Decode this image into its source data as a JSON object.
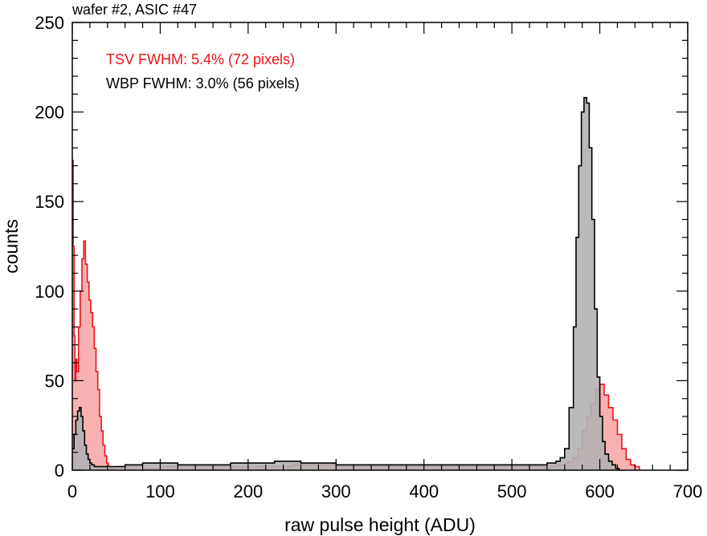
{
  "chart_data": {
    "type": "histogram",
    "title": "wafer #2, ASIC #47",
    "xlabel": "raw pulse height (ADU)",
    "ylabel": "counts",
    "xlim": [
      0,
      700
    ],
    "ylim": [
      0,
      250
    ],
    "xticks": [
      "0",
      "100",
      "200",
      "300",
      "400",
      "500",
      "600",
      "700"
    ],
    "yticks": [
      "0",
      "50",
      "100",
      "150",
      "200",
      "250"
    ],
    "grid": false,
    "annotations": [
      {
        "text": "TSV FWHM: 5.4% (72 pixels)",
        "color": "#e8141a"
      },
      {
        "text": "WBP FWHM: 3.0% (56 pixels)",
        "color": "#000000"
      }
    ],
    "series": [
      {
        "color": "#e8141a",
        "fill": "#f7a3a3",
        "x": [
          0,
          1,
          2,
          3,
          4,
          5,
          7,
          9,
          11,
          13,
          15,
          17,
          19,
          21,
          23,
          25,
          27,
          29,
          31,
          33,
          35,
          37,
          39,
          41,
          44,
          50,
          60,
          80,
          100,
          150,
          200,
          250,
          300,
          350,
          400,
          450,
          500,
          530,
          550,
          560,
          565,
          570,
          575,
          580,
          585,
          590,
          595,
          600,
          605,
          610,
          615,
          620,
          625,
          630,
          635,
          640,
          645
        ],
        "y": [
          173,
          125,
          75,
          50,
          62,
          55,
          80,
          100,
          118,
          128,
          115,
          105,
          95,
          88,
          80,
          68,
          55,
          45,
          30,
          22,
          14,
          8,
          4,
          2,
          1,
          2,
          2,
          1,
          2,
          2,
          2,
          3,
          2,
          2,
          2,
          2,
          2,
          2,
          3,
          4,
          5,
          7,
          12,
          22,
          30,
          37,
          45,
          48,
          42,
          35,
          28,
          20,
          12,
          6,
          3,
          2,
          0
        ]
      },
      {
        "color": "#000000",
        "fill": "#b3b3b3",
        "x": [
          0,
          2,
          4,
          6,
          8,
          10,
          12,
          14,
          16,
          18,
          20,
          22,
          25,
          30,
          40,
          60,
          80,
          100,
          120,
          150,
          180,
          200,
          230,
          260,
          300,
          350,
          400,
          450,
          500,
          520,
          540,
          550,
          555,
          560,
          565,
          570,
          573,
          576,
          579,
          582,
          585,
          588,
          591,
          594,
          597,
          600,
          603,
          606,
          610,
          614,
          618,
          622
        ],
        "y": [
          12,
          20,
          28,
          33,
          35,
          30,
          22,
          14,
          9,
          6,
          4,
          3,
          2,
          2,
          2,
          3,
          4,
          4,
          3,
          3,
          4,
          4,
          5,
          4,
          3,
          3,
          3,
          3,
          3,
          3,
          4,
          5,
          7,
          12,
          35,
          80,
          130,
          170,
          200,
          208,
          205,
          180,
          140,
          90,
          52,
          30,
          16,
          9,
          5,
          3,
          1,
          0
        ]
      }
    ]
  }
}
